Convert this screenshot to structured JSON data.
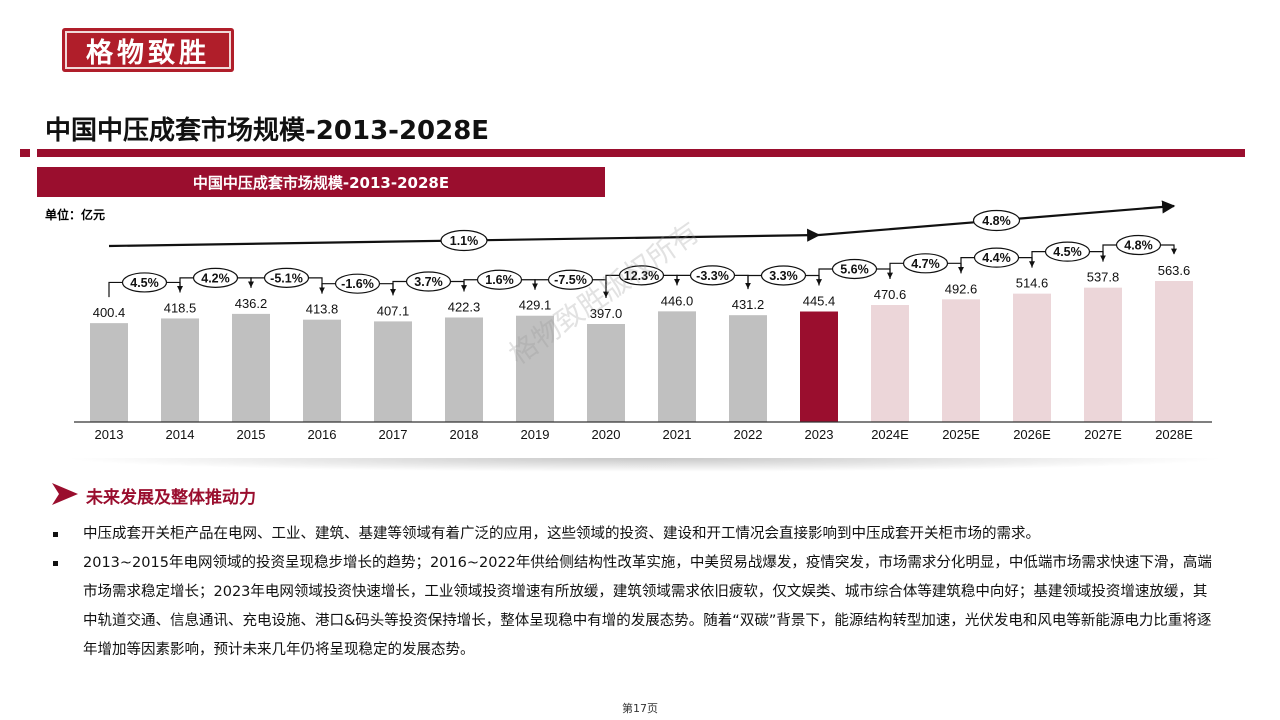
{
  "logo": {
    "text": "格物致胜"
  },
  "page_title": "中国中压成套市场规模-2013-2028E",
  "chart_banner": "中国中压成套市场规模-2013-2028E",
  "unit_label": "单位：亿元",
  "watermark": "格物致胜版权所有",
  "colors": {
    "brand": "#9a0e2e",
    "historical_bar": "#c0c0c0",
    "highlight_bar": "#9a0e2e",
    "forecast_bar": "#ecd6d9"
  },
  "chart_data": {
    "type": "bar",
    "title": "中国中压成套市场规模-2013-2028E",
    "ylabel": "亿元",
    "categories": [
      "2013",
      "2014",
      "2015",
      "2016",
      "2017",
      "2018",
      "2019",
      "2020",
      "2021",
      "2022",
      "2023",
      "2024E",
      "2025E",
      "2026E",
      "2027E",
      "2028E"
    ],
    "values": [
      400.4,
      418.5,
      436.2,
      413.8,
      407.1,
      422.3,
      429.1,
      397.0,
      446.0,
      431.2,
      445.4,
      470.6,
      492.6,
      514.6,
      537.8,
      563.6
    ],
    "value_labels": [
      "400.4",
      "418.5",
      "436.2",
      "413.8",
      "407.1",
      "422.3",
      "429.1",
      "397.0",
      "446.0",
      "431.2",
      "445.4",
      "470.6",
      "492.6",
      "514.6",
      "537.8",
      "563.6"
    ],
    "bar_styles": [
      "historical",
      "historical",
      "historical",
      "historical",
      "historical",
      "historical",
      "historical",
      "historical",
      "historical",
      "historical",
      "highlight",
      "forecast",
      "forecast",
      "forecast",
      "forecast",
      "forecast"
    ],
    "growth_labels": [
      "4.5%",
      "4.2%",
      "-5.1%",
      "-1.6%",
      "3.7%",
      "1.6%",
      "-7.5%",
      "12.3%",
      "-3.3%",
      "3.3%",
      "5.6%",
      "4.7%",
      "4.4%",
      "4.5%",
      "4.8%"
    ],
    "cagr": [
      {
        "label": "1.1%",
        "from": "2013",
        "to": "2023"
      },
      {
        "label": "4.8%",
        "from": "2023",
        "to": "2028E"
      }
    ],
    "ylim": [
      0,
      600
    ],
    "grid": false,
    "legend": "none"
  },
  "section": {
    "title": "未来发展及整体推动力"
  },
  "bullets": [
    "中压成套开关柜产品在电网、工业、建筑、基建等领域有着广泛的应用，这些领域的投资、建设和开工情况会直接影响到中压成套开关柜市场的需求。",
    "2013~2015年电网领域的投资呈现稳步增长的趋势；2016~2022年供给侧结构性改革实施，中美贸易战爆发，疫情突发，市场需求分化明显，中低端市场需求快速下滑，高端市场需求稳定增长；2023年电网领域投资快速增长，工业领域投资增速有所放缓，建筑领域需求依旧疲软，仅文娱类、城市综合体等建筑稳中向好；基建领域投资增速放缓，其中轨道交通、信息通讯、充电设施、港口&码头等投资保持增长，整体呈现稳中有增的发展态势。随着“双碳”背景下，能源结构转型加速，光伏发电和风电等新能源电力比重将逐年增加等因素影响，预计未来几年仍将呈现稳定的发展态势。"
  ],
  "page_number": "第17页"
}
